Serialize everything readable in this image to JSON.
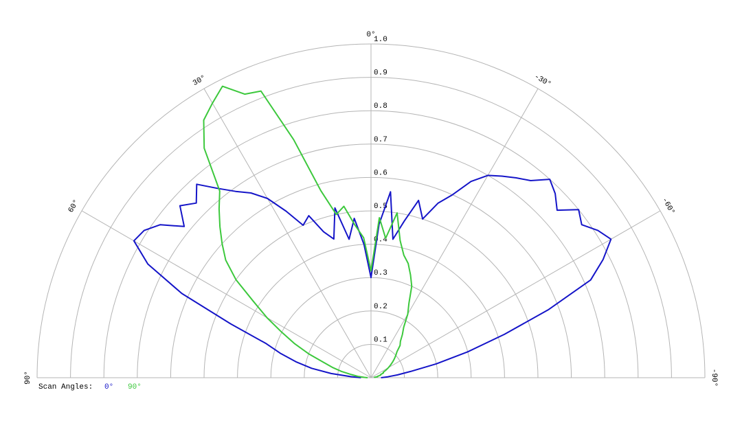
{
  "chart_data": {
    "type": "polar",
    "x": [
      90,
      87,
      84,
      81,
      78,
      75,
      72,
      69,
      66,
      63,
      60,
      57,
      54,
      51,
      48,
      45,
      42,
      39,
      36,
      33,
      30,
      27,
      24,
      21,
      18,
      15,
      12,
      9,
      6,
      3,
      0,
      -3,
      -6,
      -9,
      -12,
      -15,
      -18,
      -21,
      -24,
      -27,
      -30,
      -33,
      -36,
      -39,
      -42,
      -45,
      -48,
      -51,
      -54,
      -57,
      -60,
      -63,
      -66,
      -69,
      -72,
      -75,
      -78,
      -81,
      -84,
      -87,
      -90
    ],
    "series": [
      {
        "name": "0°",
        "color": "#1414c8",
        "values": [
          0.03,
          0.06,
          0.12,
          0.18,
          0.23,
          0.28,
          0.33,
          0.45,
          0.62,
          0.75,
          0.82,
          0.81,
          0.78,
          0.72,
          0.77,
          0.74,
          0.78,
          0.73,
          0.69,
          0.66,
          0.62,
          0.56,
          0.5,
          0.52,
          0.46,
          0.43,
          0.52,
          0.42,
          0.48,
          0.4,
          0.3,
          0.46,
          0.56,
          0.42,
          0.48,
          0.55,
          0.5,
          0.56,
          0.6,
          0.66,
          0.7,
          0.72,
          0.74,
          0.76,
          0.8,
          0.78,
          0.75,
          0.8,
          0.78,
          0.81,
          0.83,
          0.78,
          0.72,
          0.57,
          0.42,
          0.3,
          0.2,
          0.12,
          0.08,
          0.05,
          0.03
        ]
      },
      {
        "name": "90°",
        "color": "#3cc83c",
        "values": [
          0.01,
          0.02,
          0.04,
          0.06,
          0.09,
          0.12,
          0.15,
          0.2,
          0.25,
          0.3,
          0.36,
          0.42,
          0.5,
          0.56,
          0.6,
          0.64,
          0.68,
          0.72,
          0.85,
          0.92,
          0.95,
          0.98,
          0.93,
          0.92,
          0.75,
          0.58,
          0.5,
          0.52,
          0.46,
          0.42,
          0.32,
          0.48,
          0.42,
          0.5,
          0.42,
          0.38,
          0.36,
          0.33,
          0.3,
          0.25,
          0.22,
          0.18,
          0.16,
          0.14,
          0.13,
          0.11,
          0.1,
          0.09,
          0.08,
          0.07,
          0.06,
          0.05,
          0.04,
          0.04,
          0.03,
          0.03,
          0.02,
          0.02,
          0.01,
          0.01,
          0.01
        ]
      }
    ],
    "rlim": [
      0,
      1.0
    ],
    "rticks": [
      0.1,
      0.2,
      0.3,
      0.4,
      0.5,
      0.6,
      0.7,
      0.8,
      0.9,
      {
        "value": 1.0,
        "label": "1.0"
      }
    ],
    "xticks": [
      {
        "value": 90,
        "label": "90°"
      },
      {
        "value": 60,
        "label": "60°"
      },
      {
        "value": 30,
        "label": "30°"
      },
      {
        "value": 0,
        "label": "0°"
      },
      {
        "value": -30,
        "label": "-30°"
      },
      {
        "value": -60,
        "label": "-60°"
      },
      {
        "value": -90,
        "label": "-90°"
      }
    ],
    "legend_title": "Scan Angles:",
    "grid": true
  }
}
